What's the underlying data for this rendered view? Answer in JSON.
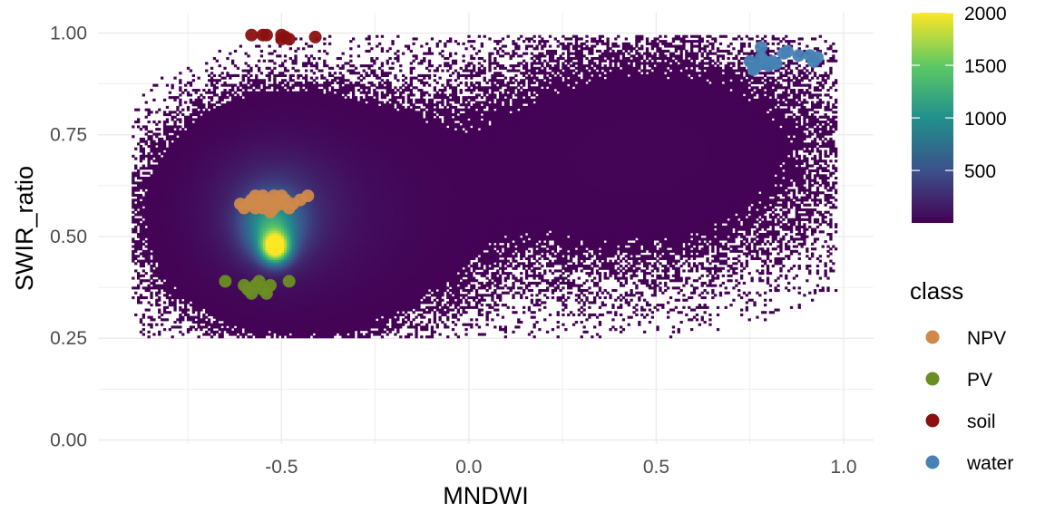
{
  "chart_data": {
    "type": "scatter",
    "xlabel": "MNDWI",
    "ylabel": "SWIR_ratio",
    "xlim": [
      -0.99,
      1.08
    ],
    "ylim": [
      -0.01,
      1.05
    ],
    "x_ticks": [
      -0.5,
      0.0,
      0.5,
      1.0
    ],
    "x_tick_labels": [
      "-0.5",
      "0.0",
      "0.5",
      "1.0"
    ],
    "y_ticks": [
      0.0,
      0.25,
      0.5,
      0.75,
      1.0
    ],
    "y_tick_labels": [
      "0.00",
      "0.25",
      "0.50",
      "0.75",
      "1.00"
    ],
    "grid": true,
    "background": {
      "type": "heatmap",
      "bin_width": 0.007,
      "bin_height": 0.006,
      "colorscale": [
        "#440154",
        "#3b528b",
        "#21908d",
        "#5dc963",
        "#fde725"
      ],
      "color_range": [
        1,
        2000
      ],
      "color_ticks": [
        500,
        1000,
        1500,
        2000
      ],
      "color_tick_labels": [
        "500",
        "1000",
        "1500",
        "2000"
      ],
      "density_components": [
        {
          "x": -0.52,
          "y": 0.47,
          "sx": 0.025,
          "sy": 0.025,
          "peak": 2000
        },
        {
          "x": -0.53,
          "y": 0.52,
          "sx": 0.05,
          "sy": 0.05,
          "peak": 900
        },
        {
          "x": -0.52,
          "y": 0.56,
          "sx": 0.1,
          "sy": 0.09,
          "peak": 250
        },
        {
          "x": -0.45,
          "y": 0.55,
          "sx": 0.2,
          "sy": 0.14,
          "peak": 60
        },
        {
          "x": 0.5,
          "y": 0.72,
          "sx": 0.3,
          "sy": 0.16,
          "peak": 12
        },
        {
          "x": 0.2,
          "y": 0.6,
          "sx": 0.4,
          "sy": 0.18,
          "peak": 5
        }
      ]
    },
    "series": [
      {
        "name": "NPV",
        "color": "#d0894a",
        "x": [
          -0.61,
          -0.6,
          -0.59,
          -0.58,
          -0.57,
          -0.57,
          -0.56,
          -0.56,
          -0.55,
          -0.55,
          -0.54,
          -0.53,
          -0.53,
          -0.52,
          -0.52,
          -0.51,
          -0.5,
          -0.5,
          -0.49,
          -0.48,
          -0.47,
          -0.45,
          -0.43
        ],
        "y": [
          0.58,
          0.57,
          0.58,
          0.59,
          0.6,
          0.57,
          0.59,
          0.58,
          0.6,
          0.57,
          0.59,
          0.56,
          0.58,
          0.6,
          0.57,
          0.59,
          0.58,
          0.6,
          0.59,
          0.57,
          0.58,
          0.59,
          0.6
        ]
      },
      {
        "name": "PV",
        "color": "#6b8e23",
        "x": [
          -0.65,
          -0.6,
          -0.59,
          -0.58,
          -0.57,
          -0.56,
          -0.55,
          -0.54,
          -0.53,
          -0.48
        ],
        "y": [
          0.39,
          0.38,
          0.37,
          0.36,
          0.38,
          0.39,
          0.37,
          0.36,
          0.38,
          0.39
        ]
      },
      {
        "name": "soil",
        "color": "#8b1010",
        "x": [
          -0.58,
          -0.55,
          -0.54,
          -0.5,
          -0.5,
          -0.49,
          -0.48,
          -0.41
        ],
        "y": [
          0.995,
          0.995,
          0.995,
          0.995,
          0.985,
          0.99,
          0.985,
          0.99
        ]
      },
      {
        "name": "water",
        "color": "#4682b4",
        "x": [
          0.75,
          0.76,
          0.77,
          0.78,
          0.79,
          0.8,
          0.81,
          0.82,
          0.84,
          0.85,
          0.88,
          0.91,
          0.92,
          0.93,
          0.78,
          0.76
        ],
        "y": [
          0.93,
          0.91,
          0.92,
          0.94,
          0.93,
          0.92,
          0.93,
          0.925,
          0.95,
          0.955,
          0.945,
          0.945,
          0.93,
          0.94,
          0.965,
          0.915
        ]
      }
    ],
    "legend": {
      "title": "class",
      "entries": [
        "NPV",
        "PV",
        "soil",
        "water"
      ],
      "placement": "right"
    }
  }
}
